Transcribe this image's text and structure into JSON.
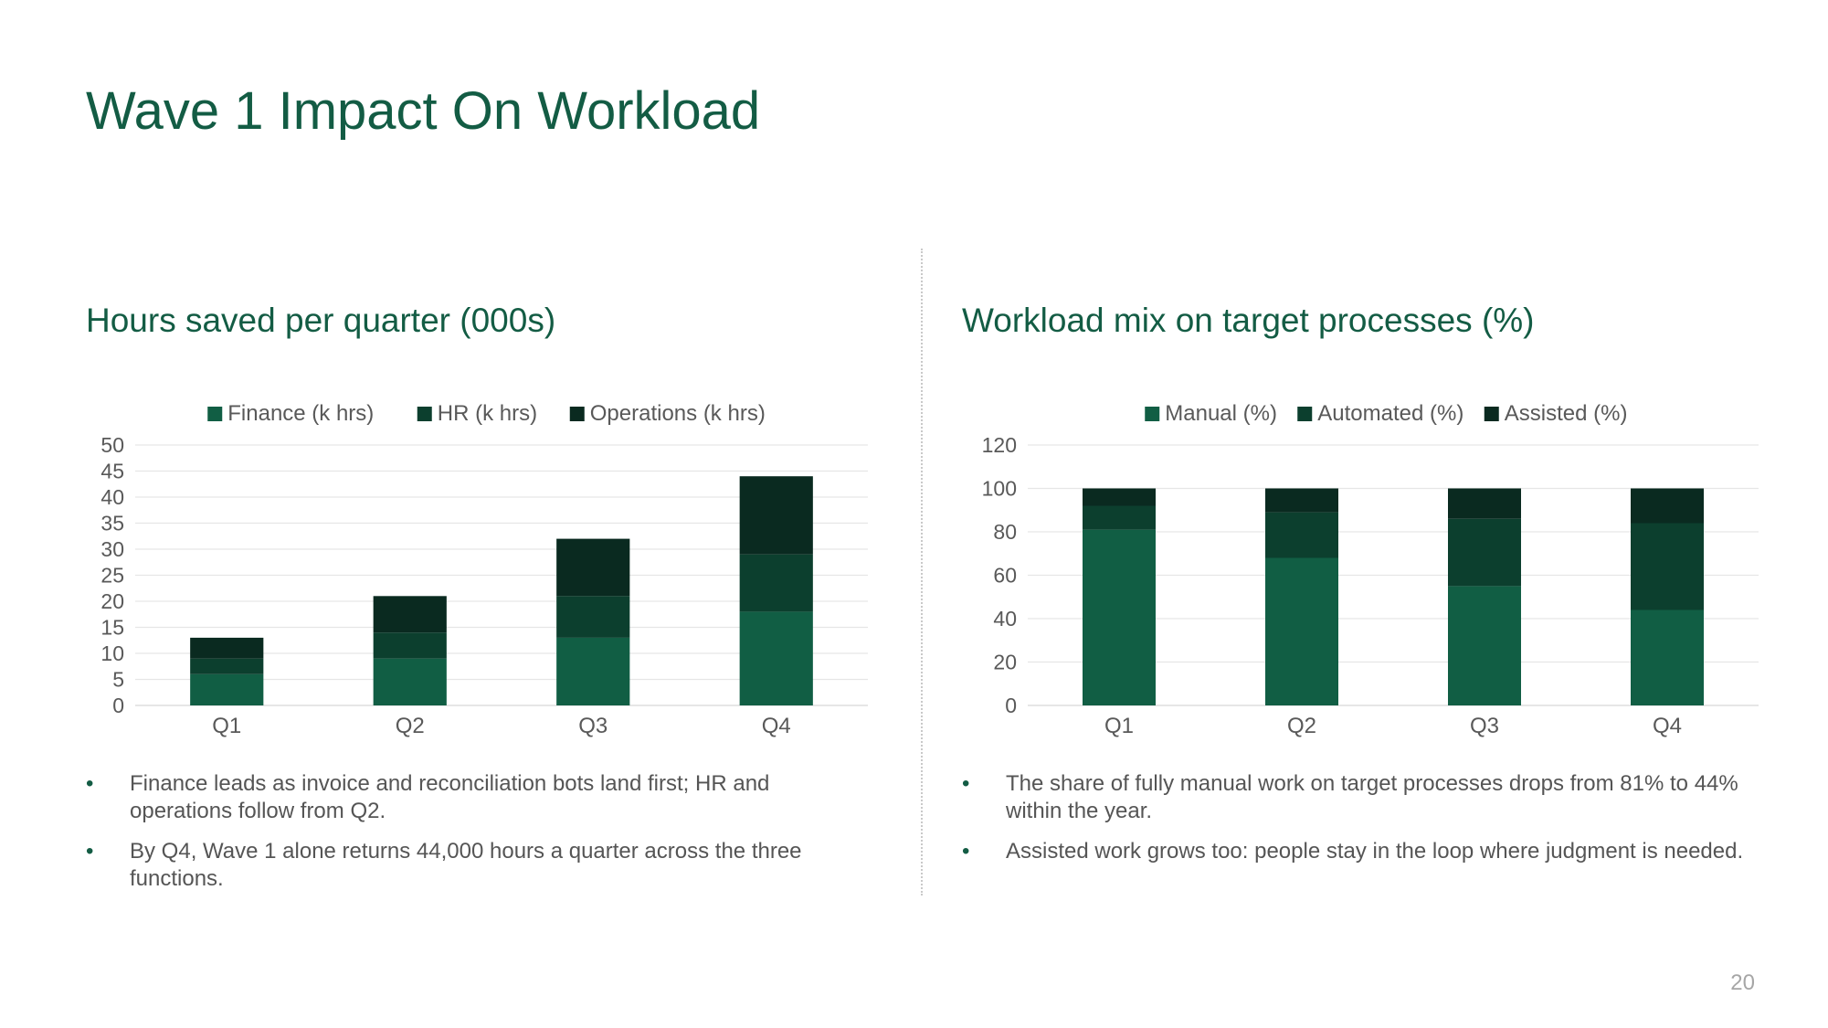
{
  "slide": {
    "title": "Wave 1 Impact On Workload",
    "page_number": "20"
  },
  "colors": {
    "title": "#135c44",
    "series_1": "#115e44",
    "series_2": "#0c3f2e",
    "series_3": "#0a2a20",
    "gridline": "#e6e6e6",
    "axis_text": "#595959"
  },
  "left_panel": {
    "heading": "Hours saved per quarter (000s)",
    "bullets": [
      "Finance leads as invoice and reconciliation bots land first; HR and operations follow from Q2.",
      "By Q4, Wave 1 alone returns 44,000 hours a quarter across the three functions."
    ]
  },
  "right_panel": {
    "heading": "Workload mix on target processes (%)",
    "bullets": [
      "The share of fully manual work on target processes drops from 81% to 44% within the year.",
      "Assisted work grows too: people stay in the loop where judgment is needed."
    ]
  },
  "chart_data": [
    {
      "type": "bar",
      "stacked": true,
      "categories": [
        "Q1",
        "Q2",
        "Q3",
        "Q4"
      ],
      "series": [
        {
          "name": "Finance (k hrs)",
          "values": [
            6,
            9,
            13,
            18
          ]
        },
        {
          "name": "HR (k hrs)",
          "values": [
            3,
            5,
            8,
            11
          ]
        },
        {
          "name": "Operations (k hrs)",
          "values": [
            4,
            7,
            11,
            15
          ]
        }
      ],
      "ylim": [
        0,
        50
      ],
      "yticks": [
        0,
        5,
        10,
        15,
        20,
        25,
        30,
        35,
        40,
        45,
        50
      ],
      "grid": true,
      "legend": "top"
    },
    {
      "type": "bar",
      "stacked": true,
      "categories": [
        "Q1",
        "Q2",
        "Q3",
        "Q4"
      ],
      "series": [
        {
          "name": "Manual (%)",
          "values": [
            81,
            68,
            55,
            44
          ]
        },
        {
          "name": "Automated (%)",
          "values": [
            11,
            21,
            31,
            40
          ]
        },
        {
          "name": "Assisted (%)",
          "values": [
            8,
            11,
            14,
            16
          ]
        }
      ],
      "ylim": [
        0,
        120
      ],
      "yticks": [
        0,
        20,
        40,
        60,
        80,
        100,
        120
      ],
      "grid": true,
      "legend": "top"
    }
  ]
}
